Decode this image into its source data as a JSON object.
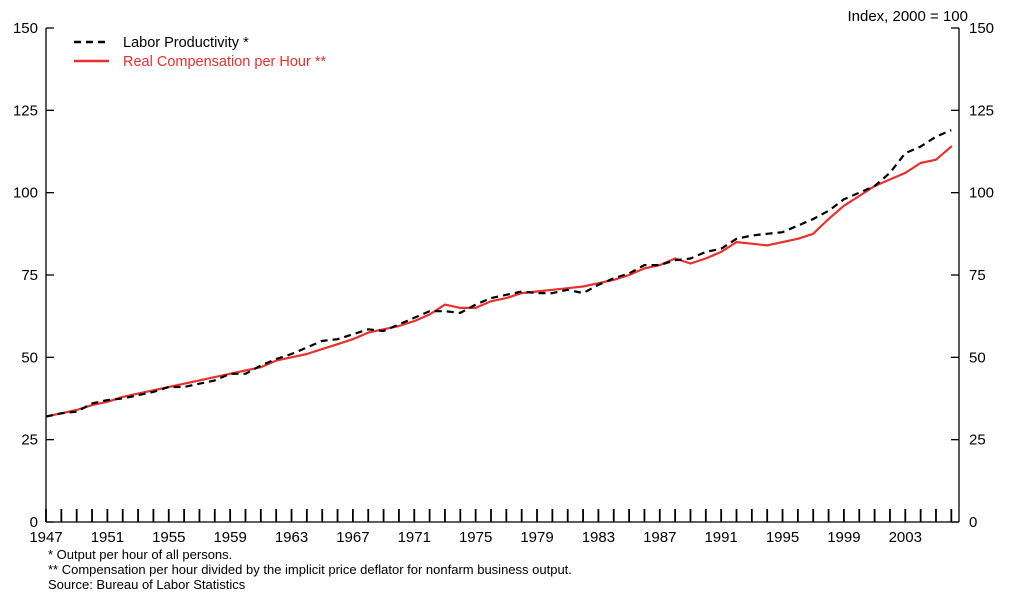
{
  "chart_data": {
    "type": "line",
    "units_label": "Index, 2000 = 100",
    "ylim": [
      0,
      150
    ],
    "yticks": [
      0,
      25,
      50,
      75,
      100,
      125,
      150
    ],
    "xlim": [
      1947,
      2006.5
    ],
    "xtick_labels": [
      "1947",
      "1951",
      "1955",
      "1959",
      "1963",
      "1967",
      "1971",
      "1975",
      "1979",
      "1983",
      "1987",
      "1991",
      "1995",
      "1999",
      "2003"
    ],
    "series": [
      {
        "name": "Labor Productivity *",
        "color": "#000000",
        "style": "dashed",
        "x": [
          1947,
          1948,
          1949,
          1950,
          1951,
          1952,
          1953,
          1954,
          1955,
          1956,
          1957,
          1958,
          1959,
          1960,
          1961,
          1962,
          1963,
          1964,
          1965,
          1966,
          1967,
          1968,
          1969,
          1970,
          1971,
          1972,
          1973,
          1974,
          1975,
          1976,
          1977,
          1978,
          1979,
          1980,
          1981,
          1982,
          1983,
          1984,
          1985,
          1986,
          1987,
          1988,
          1989,
          1990,
          1991,
          1992,
          1993,
          1994,
          1995,
          1996,
          1997,
          1998,
          1999,
          2000,
          2001,
          2002,
          2003,
          2004,
          2005,
          2006
        ],
        "values": [
          32,
          33,
          33.5,
          36,
          37,
          37.5,
          38.5,
          39.5,
          41,
          41,
          42,
          43,
          45,
          45,
          47.5,
          49.5,
          51,
          53,
          55,
          55.5,
          57,
          58.5,
          58,
          60,
          62,
          64,
          64,
          63.5,
          66,
          68,
          69,
          70,
          69.5,
          69.5,
          70.5,
          69.5,
          72,
          74,
          75.5,
          78,
          78,
          79.5,
          80,
          82,
          83,
          86,
          87,
          87.5,
          88,
          90,
          92,
          94.5,
          98,
          100,
          102,
          106,
          112,
          114,
          117,
          119
        ]
      },
      {
        "name": "Real Compensation per Hour **",
        "color": "#e8302e",
        "style": "solid",
        "x": [
          1947,
          1948,
          1949,
          1950,
          1951,
          1952,
          1953,
          1954,
          1955,
          1956,
          1957,
          1958,
          1959,
          1960,
          1961,
          1962,
          1963,
          1964,
          1965,
          1966,
          1967,
          1968,
          1969,
          1970,
          1971,
          1972,
          1973,
          1974,
          1975,
          1976,
          1977,
          1978,
          1979,
          1980,
          1981,
          1982,
          1983,
          1984,
          1985,
          1986,
          1987,
          1988,
          1989,
          1990,
          1991,
          1992,
          1993,
          1994,
          1995,
          1996,
          1997,
          1998,
          1999,
          2000,
          2001,
          2002,
          2003,
          2004,
          2005,
          2006
        ],
        "values": [
          32,
          33,
          34,
          35.5,
          36.5,
          38,
          39,
          40,
          41,
          42,
          43,
          44,
          45,
          46,
          47,
          49,
          50,
          51,
          52.5,
          54,
          55.5,
          57.5,
          58.5,
          59.5,
          61,
          63,
          66,
          65,
          65,
          67,
          68,
          69.5,
          70,
          70.5,
          71,
          71.5,
          72.5,
          73.5,
          75,
          77,
          78,
          80,
          78.5,
          80,
          82,
          85,
          84.5,
          84,
          85,
          86,
          87.5,
          92,
          96,
          99,
          102,
          104,
          106,
          109,
          110,
          114
        ]
      }
    ]
  },
  "notes": [
    "* Output per hour of all persons.",
    "** Compensation per hour divided by the implicit price deflator for nonfarm business output.",
    "Source: Bureau of Labor Statistics"
  ]
}
